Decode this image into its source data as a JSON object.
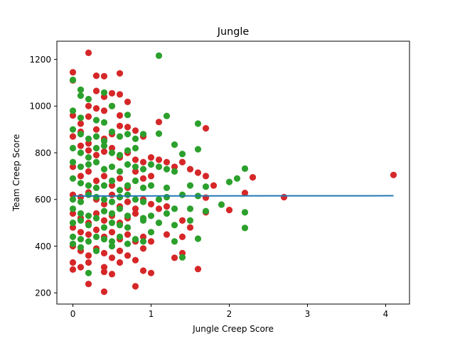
{
  "chart_data": {
    "type": "scatter",
    "title": "Jungle",
    "xlabel": "Jungle Creep Score",
    "ylabel": "Team Creep Score",
    "xlim": [
      -0.205,
      4.305
    ],
    "ylim": [
      152,
      1278
    ],
    "x_ticks": [
      0,
      1,
      2,
      3,
      4
    ],
    "y_ticks": [
      200,
      400,
      600,
      800,
      1000,
      1200
    ],
    "grid": false,
    "legend": "none",
    "colors": {
      "red": "#d62728",
      "green": "#2ca02c",
      "line": "#1f77b4",
      "axis": "#000000"
    },
    "series": [
      {
        "color": "red",
        "points": [
          [
            0,
            1145
          ],
          [
            0,
            1110
          ],
          [
            0.2,
            1228
          ],
          [
            0.3,
            1130
          ],
          [
            0.4,
            1128
          ],
          [
            0.6,
            1140
          ],
          [
            0.5,
            1055
          ],
          [
            0.6,
            1050
          ],
          [
            0.3,
            1065
          ],
          [
            0.2,
            1000
          ],
          [
            0.4,
            1040
          ],
          [
            0.7,
            1018
          ],
          [
            0,
            960
          ],
          [
            0.1,
            925
          ],
          [
            0.2,
            955
          ],
          [
            0.3,
            990
          ],
          [
            0.4,
            980
          ],
          [
            0.5,
            1000
          ],
          [
            0.6,
            960
          ],
          [
            1.1,
            932
          ],
          [
            1.7,
            905
          ],
          [
            0,
            870
          ],
          [
            0.1,
            890
          ],
          [
            0.2,
            840
          ],
          [
            0.3,
            900
          ],
          [
            0.4,
            860
          ],
          [
            0.5,
            880
          ],
          [
            0.6,
            915
          ],
          [
            0.7,
            910
          ],
          [
            0.8,
            895
          ],
          [
            0.9,
            870
          ],
          [
            0.1,
            830
          ],
          [
            0.2,
            810
          ],
          [
            0.3,
            790
          ],
          [
            0.4,
            805
          ],
          [
            0.5,
            820
          ],
          [
            0.6,
            780
          ],
          [
            0.7,
            800
          ],
          [
            0.8,
            770
          ],
          [
            0.9,
            760
          ],
          [
            1.0,
            780
          ],
          [
            1.1,
            770
          ],
          [
            1.2,
            760
          ],
          [
            1.3,
            740
          ],
          [
            1.4,
            760
          ],
          [
            0,
            740
          ],
          [
            0.1,
            700
          ],
          [
            0.2,
            720
          ],
          [
            0.3,
            680
          ],
          [
            0.4,
            700
          ],
          [
            0.5,
            660
          ],
          [
            0.6,
            690
          ],
          [
            0.7,
            650
          ],
          [
            0.8,
            720
          ],
          [
            0.9,
            690
          ],
          [
            1.0,
            700
          ],
          [
            1.5,
            730
          ],
          [
            1.6,
            715
          ],
          [
            1.7,
            700
          ],
          [
            1.8,
            660
          ],
          [
            2.3,
            695
          ],
          [
            4.1,
            705
          ],
          [
            2.7,
            610
          ],
          [
            2.2,
            628
          ],
          [
            1.7,
            608
          ],
          [
            0,
            620
          ],
          [
            0.1,
            610
          ],
          [
            0.2,
            630
          ],
          [
            0.3,
            600
          ],
          [
            0.4,
            580
          ],
          [
            0.5,
            620
          ],
          [
            0.6,
            570
          ],
          [
            0.7,
            590
          ],
          [
            0.8,
            560
          ],
          [
            0.9,
            600
          ],
          [
            1.0,
            580
          ],
          [
            1.1,
            560
          ],
          [
            1.2,
            570
          ],
          [
            0,
            540
          ],
          [
            0.1,
            520
          ],
          [
            0.2,
            500
          ],
          [
            0.3,
            540
          ],
          [
            0.4,
            510
          ],
          [
            0.5,
            530
          ],
          [
            0.6,
            500
          ],
          [
            0.7,
            520
          ],
          [
            0.8,
            540
          ],
          [
            1.4,
            510
          ],
          [
            1.5,
            480
          ],
          [
            1.7,
            545
          ],
          [
            2.0,
            555
          ],
          [
            0,
            480
          ],
          [
            0.1,
            460
          ],
          [
            0.2,
            450
          ],
          [
            0.3,
            470
          ],
          [
            0.4,
            440
          ],
          [
            0.5,
            460
          ],
          [
            0.6,
            430
          ],
          [
            0.7,
            450
          ],
          [
            0.8,
            420
          ],
          [
            0.9,
            440
          ],
          [
            1.0,
            420
          ],
          [
            1.2,
            450
          ],
          [
            1.4,
            440
          ],
          [
            0,
            400
          ],
          [
            0.1,
            380
          ],
          [
            0.2,
            360
          ],
          [
            0.3,
            390
          ],
          [
            0.4,
            370
          ],
          [
            0.5,
            350
          ],
          [
            0.6,
            380
          ],
          [
            0.7,
            360
          ],
          [
            0.8,
            340
          ],
          [
            0.9,
            390
          ],
          [
            1.4,
            370
          ],
          [
            1.3,
            350
          ],
          [
            0,
            330
          ],
          [
            0,
            300
          ],
          [
            0.1,
            310
          ],
          [
            0.2,
            330
          ],
          [
            0.4,
            310
          ],
          [
            0.4,
            290
          ],
          [
            0.5,
            280
          ],
          [
            0.6,
            330
          ],
          [
            0.9,
            295
          ],
          [
            1.0,
            285
          ],
          [
            1.6,
            302
          ],
          [
            0.2,
            238
          ],
          [
            0.4,
            205
          ],
          [
            0.8,
            228
          ]
        ]
      },
      {
        "color": "green",
        "points": [
          [
            0,
            1112
          ],
          [
            1.1,
            1216
          ],
          [
            0.1,
            1070
          ],
          [
            0.4,
            1058
          ],
          [
            0.1,
            1045
          ],
          [
            0.2,
            1030
          ],
          [
            0.5,
            1000
          ],
          [
            0,
            980
          ],
          [
            0.1,
            950
          ],
          [
            0.3,
            940
          ],
          [
            0.4,
            930
          ],
          [
            0.7,
            962
          ],
          [
            1.2,
            958
          ],
          [
            1.6,
            925
          ],
          [
            0,
            900
          ],
          [
            0.1,
            880
          ],
          [
            0.2,
            860
          ],
          [
            0.3,
            870
          ],
          [
            0.4,
            850
          ],
          [
            0.5,
            890
          ],
          [
            0.6,
            870
          ],
          [
            0.7,
            880
          ],
          [
            0.8,
            860
          ],
          [
            0.9,
            880
          ],
          [
            1.1,
            882
          ],
          [
            0,
            820
          ],
          [
            0.1,
            800
          ],
          [
            0.2,
            780
          ],
          [
            0.3,
            820
          ],
          [
            0.4,
            830
          ],
          [
            0.5,
            800
          ],
          [
            0.6,
            790
          ],
          [
            0.7,
            810
          ],
          [
            0.8,
            820
          ],
          [
            1.3,
            835
          ],
          [
            1.6,
            815
          ],
          [
            0,
            760
          ],
          [
            0.1,
            740
          ],
          [
            0.2,
            750
          ],
          [
            0.3,
            760
          ],
          [
            0.4,
            730
          ],
          [
            0.5,
            740
          ],
          [
            0.6,
            720
          ],
          [
            0.7,
            750
          ],
          [
            0.8,
            740
          ],
          [
            0.9,
            730
          ],
          [
            1.0,
            750
          ],
          [
            1.1,
            740
          ],
          [
            1.2,
            730
          ],
          [
            1.3,
            720
          ],
          [
            1.4,
            795
          ],
          [
            0,
            690
          ],
          [
            0.1,
            670
          ],
          [
            0.2,
            660
          ],
          [
            0.3,
            650
          ],
          [
            0.4,
            660
          ],
          [
            0.5,
            680
          ],
          [
            0.6,
            640
          ],
          [
            0.7,
            660
          ],
          [
            0.8,
            680
          ],
          [
            0.9,
            650
          ],
          [
            1.0,
            660
          ],
          [
            1.2,
            650
          ],
          [
            1.5,
            660
          ],
          [
            1.7,
            655
          ],
          [
            2.1,
            690
          ],
          [
            2.2,
            732
          ],
          [
            2.0,
            675
          ],
          [
            0,
            600
          ],
          [
            0.1,
            590
          ],
          [
            0.2,
            620
          ],
          [
            0.3,
            610
          ],
          [
            0.4,
            600
          ],
          [
            0.5,
            590
          ],
          [
            0.6,
            610
          ],
          [
            0.7,
            620
          ],
          [
            0.8,
            600
          ],
          [
            0.9,
            590
          ],
          [
            1.1,
            600
          ],
          [
            1.2,
            610
          ],
          [
            1.4,
            620
          ],
          [
            1.6,
            615
          ],
          [
            1.7,
            550
          ],
          [
            1.9,
            578
          ],
          [
            2.2,
            545
          ],
          [
            0,
            560
          ],
          [
            0.1,
            540
          ],
          [
            0.2,
            530
          ],
          [
            0.3,
            520
          ],
          [
            0.4,
            550
          ],
          [
            0.5,
            540
          ],
          [
            0.6,
            560
          ],
          [
            0.7,
            530
          ],
          [
            0.9,
            520
          ],
          [
            1.0,
            530
          ],
          [
            1.2,
            540
          ],
          [
            1.3,
            560
          ],
          [
            1.5,
            560
          ],
          [
            0,
            500
          ],
          [
            0.1,
            510
          ],
          [
            0.2,
            490
          ],
          [
            0.4,
            480
          ],
          [
            0.5,
            500
          ],
          [
            0.6,
            490
          ],
          [
            0.7,
            480
          ],
          [
            0.9,
            510
          ],
          [
            1.1,
            500
          ],
          [
            1.3,
            490
          ],
          [
            1.5,
            510
          ],
          [
            2.2,
            478
          ],
          [
            0,
            440
          ],
          [
            0.1,
            430
          ],
          [
            0.2,
            420
          ],
          [
            0.3,
            440
          ],
          [
            0.4,
            430
          ],
          [
            0.5,
            420
          ],
          [
            0.6,
            440
          ],
          [
            0.8,
            430
          ],
          [
            0.9,
            420
          ],
          [
            1.0,
            460
          ],
          [
            1.3,
            420
          ],
          [
            1.6,
            432
          ],
          [
            0,
            410
          ],
          [
            0.1,
            395
          ],
          [
            0.3,
            380
          ],
          [
            0.5,
            400
          ],
          [
            0.7,
            410
          ],
          [
            1.4,
            352
          ],
          [
            0.2,
            285
          ]
        ]
      }
    ],
    "trend_line": {
      "x": [
        0,
        4.1
      ],
      "y": [
        615,
        616
      ]
    }
  }
}
